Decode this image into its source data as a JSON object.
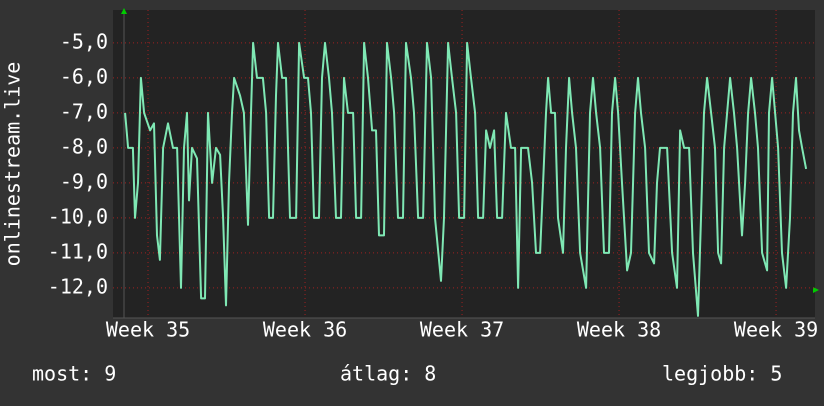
{
  "chart_data": {
    "type": "line",
    "ylabel": "onlinestream.live",
    "color": "#7fe8b4",
    "grid": true,
    "xlim": [
      34.777,
      39.248
    ],
    "ylim": [
      -12.86,
      -4.06
    ],
    "xticks": [
      {
        "value": 35,
        "label": "Week 35"
      },
      {
        "value": 36,
        "label": "Week 36"
      },
      {
        "value": 37,
        "label": "Week 37"
      },
      {
        "value": 38,
        "label": "Week 38"
      },
      {
        "value": 39,
        "label": "Week 39"
      }
    ],
    "yticks": [
      {
        "value": -5,
        "label": "-5,0"
      },
      {
        "value": -6,
        "label": "-6,0"
      },
      {
        "value": -7,
        "label": "-7,0"
      },
      {
        "value": -8,
        "label": "-8,0"
      },
      {
        "value": -9,
        "label": "-9,0"
      },
      {
        "value": -10,
        "label": "-10,0"
      },
      {
        "value": -11,
        "label": "-11,0"
      },
      {
        "value": -12,
        "label": "-12,0"
      }
    ],
    "x": [
      34.854,
      34.873,
      34.904,
      34.917,
      34.936,
      34.955,
      34.975,
      35.013,
      35.038,
      35.057,
      35.076,
      35.096,
      35.127,
      35.159,
      35.185,
      35.21,
      35.229,
      35.248,
      35.261,
      35.28,
      35.312,
      35.338,
      35.363,
      35.382,
      35.408,
      35.433,
      35.459,
      35.478,
      35.497,
      35.516,
      35.535,
      35.548,
      35.586,
      35.611,
      35.637,
      35.656,
      35.669,
      35.694,
      35.732,
      35.752,
      35.771,
      35.796,
      35.815,
      35.828,
      35.854,
      35.879,
      35.904,
      35.943,
      35.962,
      35.994,
      36.019,
      36.038,
      36.057,
      36.089,
      36.108,
      36.127,
      36.153,
      36.172,
      36.197,
      36.229,
      36.248,
      36.274,
      36.306,
      36.325,
      36.357,
      36.376,
      36.401,
      36.427,
      36.452,
      36.471,
      36.503,
      36.522,
      36.548,
      36.567,
      36.592,
      36.624,
      36.643,
      36.675,
      36.694,
      36.72,
      36.752,
      36.777,
      36.803,
      36.828,
      36.866,
      36.885,
      36.911,
      36.936,
      36.962,
      36.981,
      37.013,
      37.032,
      37.057,
      37.083,
      37.102,
      37.134,
      37.153,
      37.178,
      37.204,
      37.223,
      37.255,
      37.28,
      37.312,
      37.338,
      37.357,
      37.376,
      37.42,
      37.446,
      37.471,
      37.497,
      37.516,
      37.535,
      37.548,
      37.567,
      37.592,
      37.611,
      37.643,
      37.662,
      37.682,
      37.701,
      37.726,
      37.752,
      37.79,
      37.815,
      37.834,
      37.854,
      37.879,
      37.904,
      37.936,
      37.955,
      37.975,
      37.994,
      38.019,
      38.051,
      38.076,
      38.102,
      38.121,
      38.14,
      38.166,
      38.191,
      38.223,
      38.242,
      38.261,
      38.306,
      38.338,
      38.369,
      38.389,
      38.414,
      38.446,
      38.471,
      38.503,
      38.522,
      38.541,
      38.561,
      38.586,
      38.611,
      38.631,
      38.65,
      38.669,
      38.688,
      38.707,
      38.732,
      38.752,
      38.783,
      38.803,
      38.822,
      38.841,
      38.866,
      38.885,
      38.911,
      38.943,
      38.955,
      38.975,
      38.994,
      39.013,
      39.038,
      39.064,
      39.089,
      39.108,
      39.127,
      39.146,
      39.166,
      39.191
    ],
    "values": [
      -7,
      -8,
      -8,
      -10,
      -9,
      -6,
      -7,
      -7.5,
      -7.3,
      -10.5,
      -11.2,
      -8,
      -7.3,
      -8,
      -8,
      -12,
      -8,
      -7,
      -9.5,
      -8,
      -8.3,
      -12.3,
      -12.3,
      -7,
      -9,
      -8,
      -8.2,
      -10,
      -12.5,
      -9,
      -7,
      -6,
      -6.5,
      -7,
      -10.2,
      -7,
      -5,
      -6,
      -6,
      -7,
      -10,
      -10,
      -6.5,
      -5,
      -6,
      -6,
      -10,
      -10,
      -5,
      -6,
      -6,
      -7,
      -10,
      -10,
      -6,
      -5,
      -6,
      -7,
      -10,
      -10,
      -6,
      -7,
      -7,
      -10,
      -10,
      -5,
      -6,
      -7.5,
      -7.5,
      -10.5,
      -10.5,
      -5,
      -6,
      -7,
      -10,
      -10,
      -5,
      -6,
      -7,
      -10,
      -10,
      -5,
      -6,
      -10,
      -11.8,
      -10,
      -5,
      -6,
      -7,
      -10,
      -10,
      -5,
      -6,
      -7,
      -10,
      -10,
      -7.5,
      -8,
      -7.5,
      -10,
      -10,
      -7,
      -8,
      -8,
      -12,
      -8,
      -8,
      -9,
      -11,
      -11,
      -9,
      -7,
      -6,
      -7,
      -7,
      -10,
      -11,
      -8,
      -6,
      -7,
      -8,
      -11,
      -12,
      -7,
      -6,
      -7,
      -8,
      -11,
      -11,
      -7,
      -6,
      -7,
      -9,
      -11.5,
      -11,
      -7,
      -6,
      -7,
      -8,
      -11,
      -11.3,
      -9,
      -8,
      -8,
      -11,
      -12,
      -7.5,
      -8,
      -8,
      -11,
      -12.8,
      -10,
      -7,
      -6,
      -7,
      -8,
      -11,
      -11.3,
      -8,
      -7,
      -6,
      -7,
      -8,
      -10.5,
      -9,
      -7,
      -6,
      -7,
      -8,
      -11,
      -11.5,
      -7,
      -6,
      -7,
      -8,
      -11,
      -12,
      -10,
      -7,
      -6,
      -7.5,
      -8,
      -8.6
    ]
  },
  "summary": [
    "most: 9",
    "átlag: 8",
    "legjobb: 5"
  ]
}
